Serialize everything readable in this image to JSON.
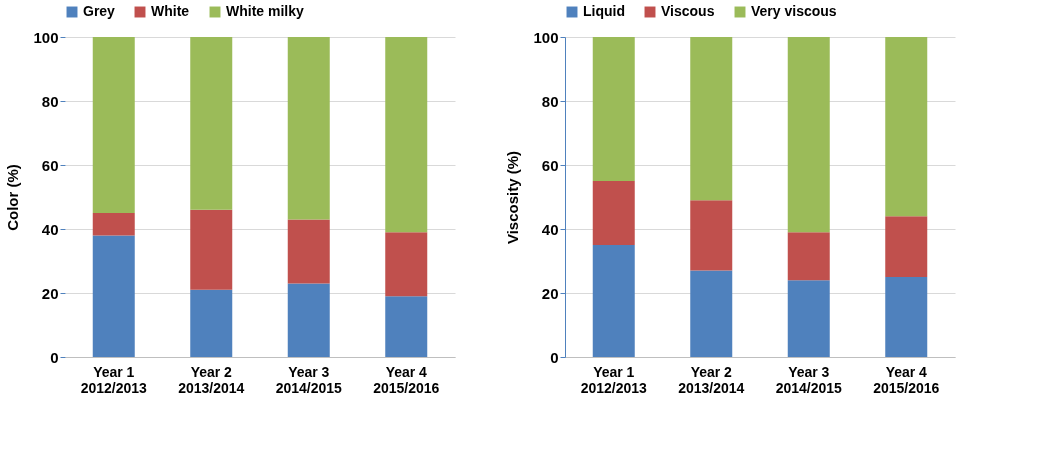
{
  "chart_data": [
    {
      "type": "bar",
      "stacked": true,
      "ylabel": "Color (%)",
      "categories": [
        "Year 1\n2012/2013",
        "Year 2\n2013/2014",
        "Year 3\n2014/2015",
        "Year 4\n2015/2016"
      ],
      "series": [
        {
          "name": "Grey",
          "color": "#4f81bd",
          "values": [
            38,
            21,
            23,
            19
          ]
        },
        {
          "name": "White",
          "color": "#c0504d",
          "values": [
            7,
            25,
            20,
            20
          ]
        },
        {
          "name": "White milky",
          "color": "#9bbb59",
          "values": [
            55,
            54,
            57,
            61
          ]
        }
      ],
      "ylim": [
        0,
        100
      ],
      "yticks": [
        0,
        20,
        40,
        60,
        80,
        100
      ],
      "grid": "y",
      "legend": "top"
    },
    {
      "type": "bar",
      "stacked": true,
      "ylabel": "Viscosity (%)",
      "categories": [
        "Year 1\n2012/2013",
        "Year 2\n2013/2014",
        "Year 3\n2014/2015",
        "Year 4\n2015/2016"
      ],
      "series": [
        {
          "name": "Liquid",
          "color": "#4f81bd",
          "values": [
            35,
            27,
            24,
            25
          ]
        },
        {
          "name": "Viscous",
          "color": "#c0504d",
          "values": [
            20,
            22,
            15,
            19
          ]
        },
        {
          "name": "Very viscous",
          "color": "#9bbb59",
          "values": [
            45,
            51,
            61,
            56
          ]
        }
      ],
      "ylim": [
        0,
        100
      ],
      "yticks": [
        0,
        20,
        40,
        60,
        80,
        100
      ],
      "grid": "y",
      "legend": "top"
    }
  ]
}
